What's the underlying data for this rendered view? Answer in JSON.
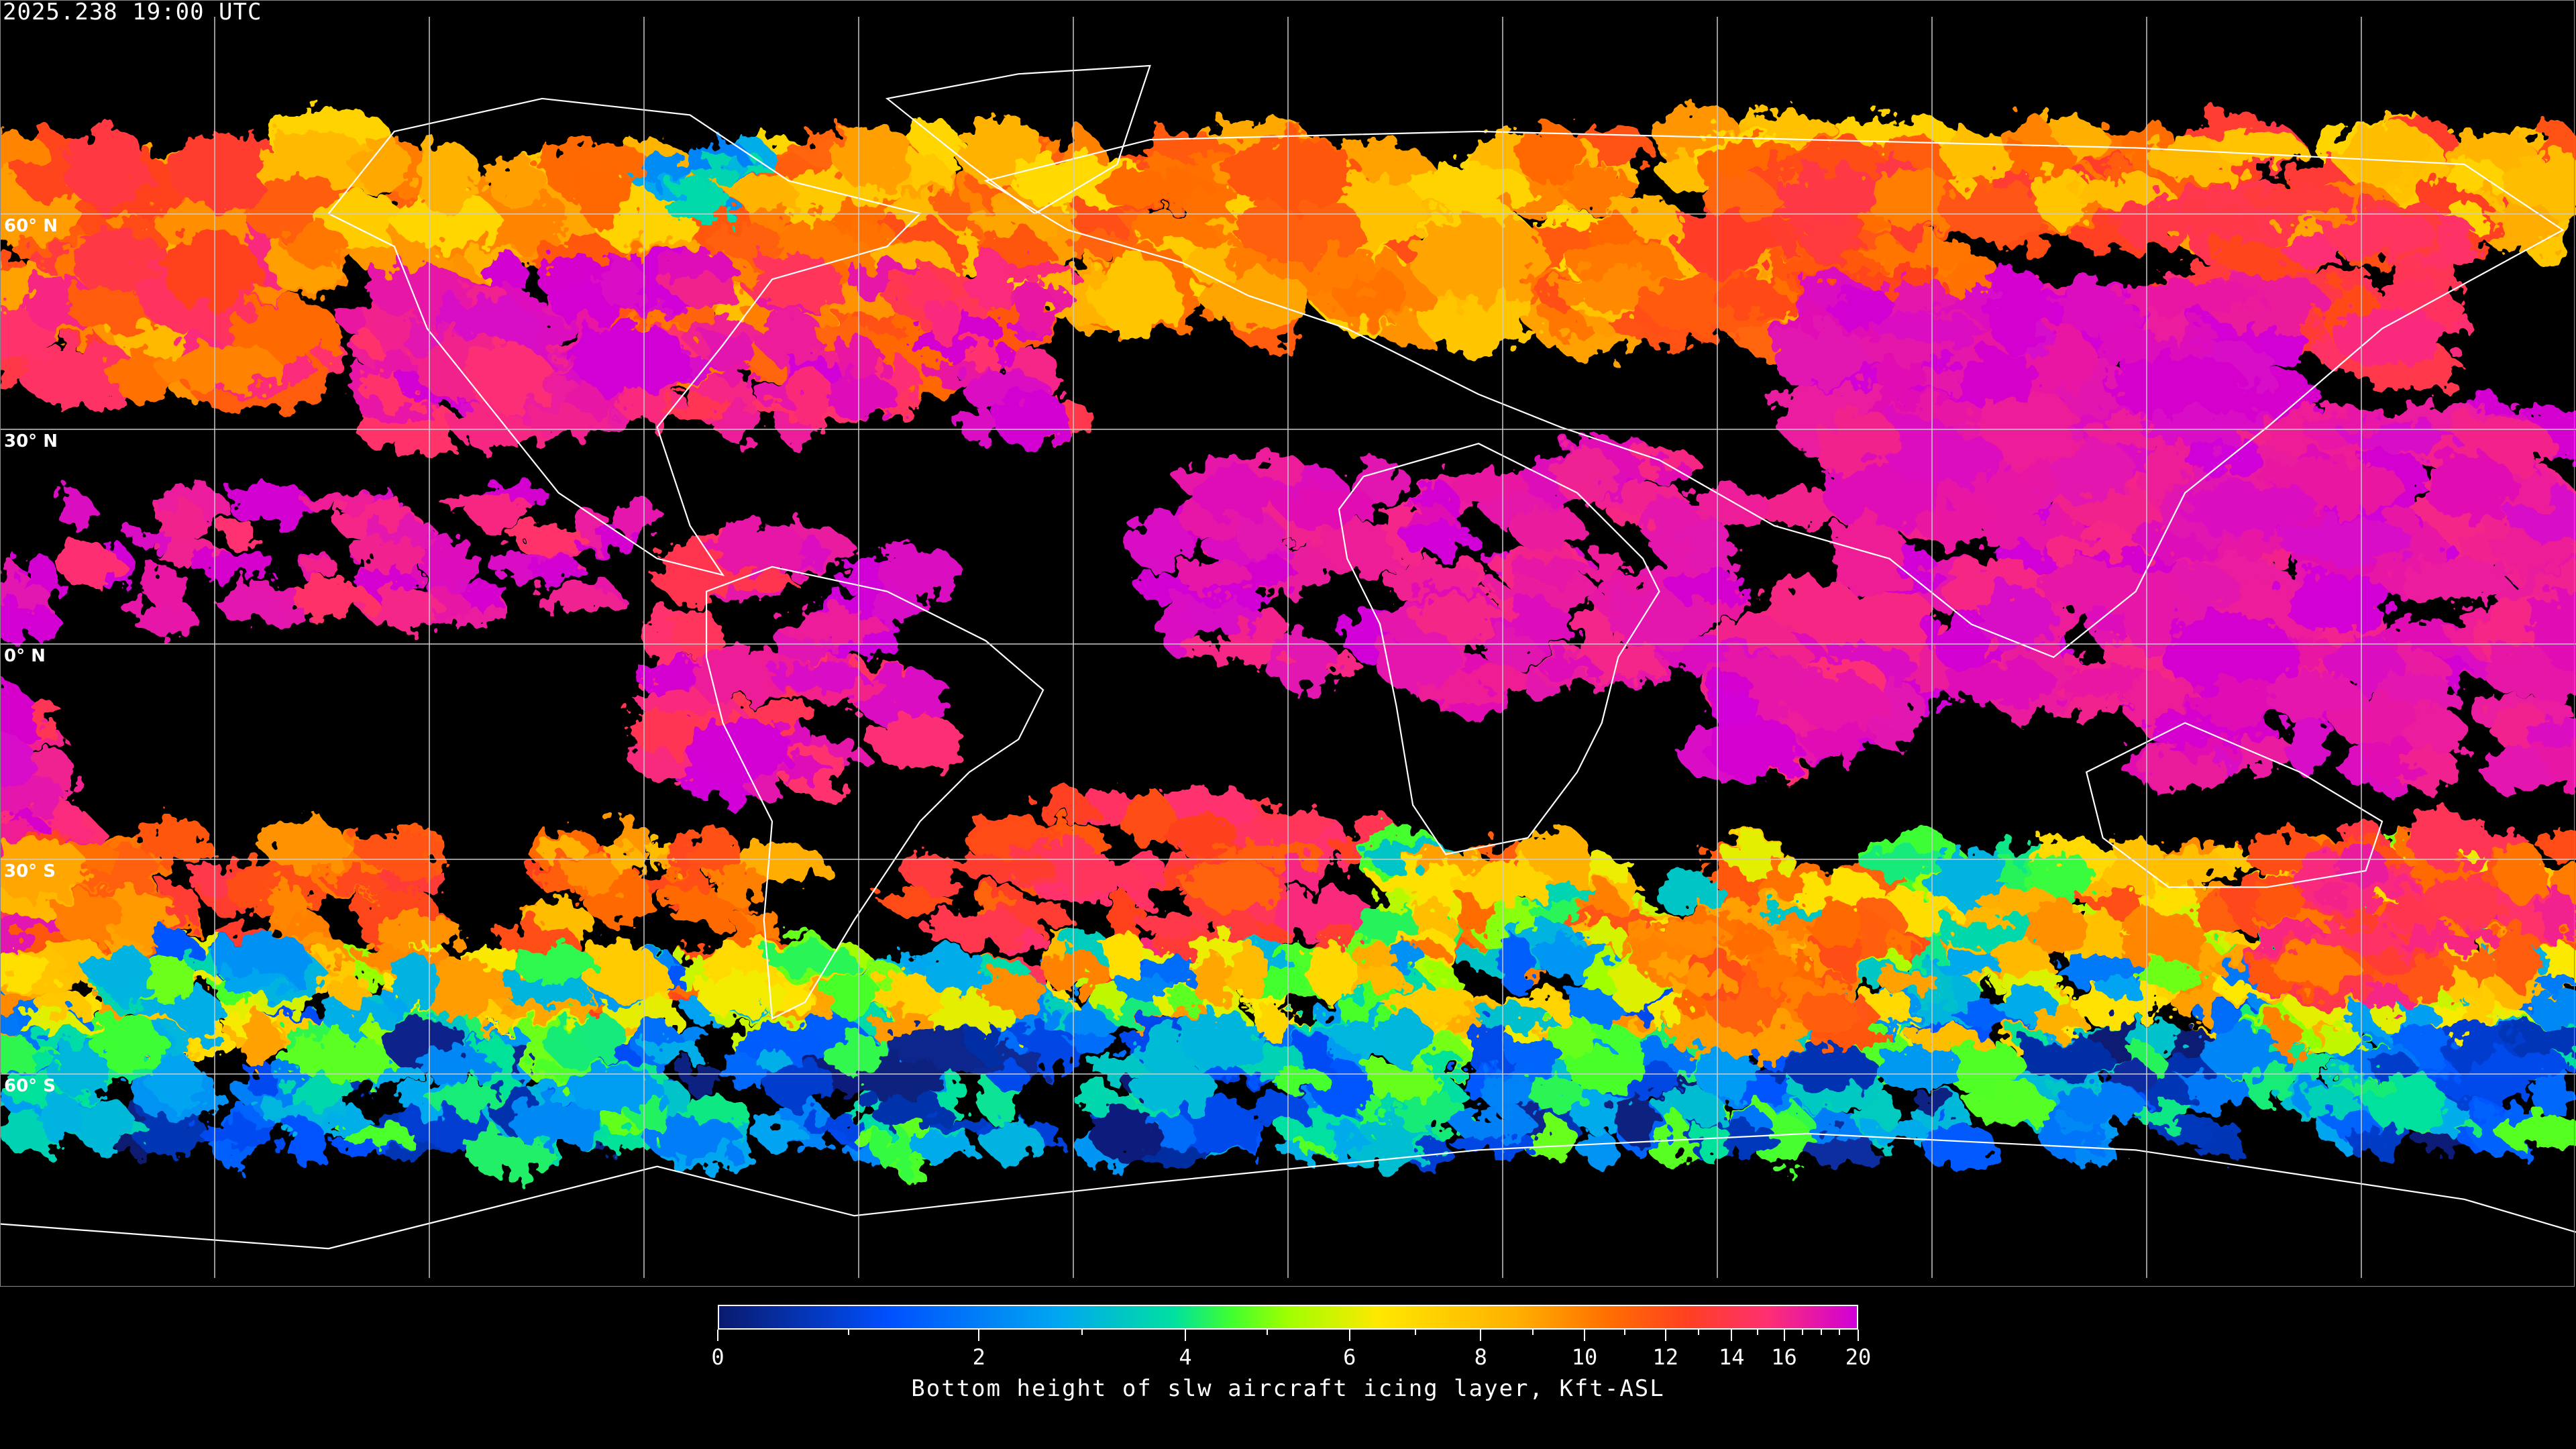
{
  "header": {
    "timestamp": "2025.238 19:00 UTC"
  },
  "map": {
    "background": "#000000",
    "coastline_color": "#ffffff",
    "gridline_color": "#cccccc",
    "lat_labels": [
      "60° N",
      "30° N",
      "0° N",
      "30° S",
      "60° S"
    ]
  },
  "colorbar": {
    "title": "Bottom height of slw aircraft icing layer, Kft-ASL",
    "min": 0,
    "max": 20,
    "tick_labels": [
      "0",
      "2",
      "4",
      "6",
      "8",
      "10",
      "12",
      "14",
      "16",
      "20"
    ],
    "minor_ticks": [
      1,
      3,
      5,
      7,
      9,
      11,
      13,
      15,
      17,
      18,
      19
    ],
    "colors": [
      "#0a1a6e",
      "#0050ff",
      "#00a8f0",
      "#00e0a0",
      "#40ff30",
      "#a0ff00",
      "#ffe800",
      "#ffb000",
      "#ff7000",
      "#ff4020",
      "#ff3070",
      "#d000d8"
    ]
  }
}
